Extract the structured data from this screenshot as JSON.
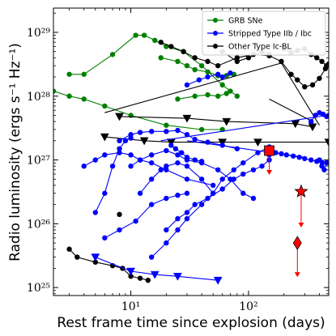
{
  "chart_data": {
    "type": "scatter",
    "title": "",
    "xlabel": "Rest frame time since explosion (days)",
    "ylabel": "Radio luminosity (ergs s⁻¹ Hz⁻¹)",
    "xscale": "log",
    "yscale": "log",
    "xlim": [
      2.2,
      480
    ],
    "ylim": [
      7.5e+24,
      2.4e+29
    ],
    "x_ticks": [
      {
        "value": 10,
        "label": "10¹"
      },
      {
        "value": 100,
        "label": "10²"
      }
    ],
    "y_ticks": [
      {
        "value": 1e+25,
        "label": "10²⁵"
      },
      {
        "value": 1e+26,
        "label": "10²⁶"
      },
      {
        "value": 1e+27,
        "label": "10²⁷"
      },
      {
        "value": 1e+28,
        "label": "10²⁸"
      },
      {
        "value": 1e+29,
        "label": "10²⁹"
      }
    ],
    "grid": false,
    "legend_position": "top-right",
    "legend": [
      {
        "label": "GRB SNe",
        "color": "#008000"
      },
      {
        "label": "Stripped Type IIb / Ibc",
        "color": "#0000ff"
      },
      {
        "label": "Other Type Ic-BL",
        "color": "#000000"
      }
    ],
    "series": [
      {
        "group": "GRB SNe",
        "color": "#008000",
        "marker": "circle",
        "points": [
          [
            3,
            2.2e+28
          ],
          [
            4,
            2.2e+28
          ],
          [
            7,
            4.5e+28
          ],
          [
            11,
            9e+28
          ],
          [
            13,
            9e+28
          ],
          [
            16,
            7.5e+28
          ],
          [
            20,
            6e+28
          ],
          [
            28,
            5e+28
          ],
          [
            40,
            3e+28
          ],
          [
            60,
            1.5e+28
          ],
          [
            80,
            1e+28
          ]
        ]
      },
      {
        "group": "GRB SNe",
        "color": "#008000",
        "marker": "circle",
        "points": [
          [
            2.2,
            1.2e+28
          ],
          [
            3,
            1e+28
          ],
          [
            4,
            9e+27
          ],
          [
            6,
            7e+27
          ],
          [
            10,
            5e+27
          ],
          [
            20,
            3.5e+27
          ],
          [
            40,
            3e+27
          ],
          [
            60,
            3e+27
          ]
        ]
      },
      {
        "group": "GRB SNe",
        "color": "#008000",
        "marker": "circle",
        "points": [
          [
            18,
            4e+28
          ],
          [
            25,
            3.5e+28
          ],
          [
            30,
            3e+28
          ],
          [
            35,
            2.6e+28
          ],
          [
            45,
            2.4e+28
          ],
          [
            55,
            2.1e+28
          ],
          [
            65,
            2.1e+28
          ],
          [
            75,
            2.2e+28
          ]
        ]
      },
      {
        "group": "GRB SNe",
        "color": "#008000",
        "marker": "circle",
        "points": [
          [
            25,
            9e+27
          ],
          [
            35,
            1e+28
          ],
          [
            45,
            1.05e+28
          ],
          [
            55,
            1e+28
          ],
          [
            65,
            1.1e+28
          ],
          [
            70,
            1.2e+28
          ]
        ]
      },
      {
        "group": "Other Type Ic-BL",
        "color": "#000000",
        "marker": "circle",
        "points": [
          [
            18,
            7e+28
          ],
          [
            22,
            6e+28
          ],
          [
            28,
            5e+28
          ],
          [
            35,
            4e+28
          ],
          [
            45,
            3.5e+28
          ],
          [
            55,
            3e+28
          ],
          [
            80,
            4e+28
          ],
          [
            110,
            4.5e+28
          ],
          [
            150,
            4.3e+28
          ],
          [
            190,
            3.5e+28
          ],
          [
            230,
            2.2e+28
          ],
          [
            260,
            1.8e+28
          ],
          [
            300,
            1.4e+28
          ],
          [
            350,
            1.5e+28
          ],
          [
            400,
            1.9e+28
          ],
          [
            450,
            2.7e+28
          ],
          [
            480,
            3.2e+28
          ]
        ]
      },
      {
        "group": "Other Type Ic-BL",
        "color": "#000000",
        "marker": "circle",
        "points": [
          [
            60,
            5e+28
          ],
          [
            80,
            3.5e+28
          ],
          [
            100,
            4e+28
          ],
          [
            130,
            5e+28
          ],
          [
            150,
            4.5e+28
          ]
        ]
      },
      {
        "group": "Other Type Ic-BL",
        "color": "#000000",
        "marker": "circle",
        "points": [
          [
            200,
            5.5e+28
          ],
          [
            230,
            4.8e+28
          ],
          [
            260,
            5.2e+28
          ],
          [
            300,
            5.5e+28
          ],
          [
            340,
            4.5e+28
          ],
          [
            380,
            4e+28
          ],
          [
            420,
            3.5e+28
          ],
          [
            460,
            3e+28
          ]
        ]
      },
      {
        "group": "Other Type Ic-BL",
        "color": "#000000",
        "marker": "circle",
        "points": [
          [
            3,
            4e+25
          ],
          [
            3.5,
            3e+25
          ],
          [
            5,
            2.5e+25
          ],
          [
            7,
            2.2e+25
          ],
          [
            8.5,
            2e+25
          ],
          [
            10,
            1.5e+25
          ],
          [
            12,
            1.4e+25
          ],
          [
            14,
            1.3e+25
          ]
        ]
      },
      {
        "group": "Other Type Ic-BL",
        "color": "#000000",
        "marker": "circle",
        "points": [
          [
            8,
            1.4e+26
          ]
        ]
      },
      {
        "group": "Other Type Ic-BL",
        "color": "#000000",
        "marker": "line",
        "points": [
          [
            6,
            5.5e+27
          ],
          [
            190,
            3.3e+28
          ],
          [
            400,
            3.5e+27
          ]
        ]
      },
      {
        "group": "Other Type Ic-BL",
        "color": "#000000",
        "marker": "line",
        "points": [
          [
            150,
            9e+27
          ],
          [
            350,
            4e+27
          ]
        ]
      },
      {
        "group": "Other Type Ic-BL",
        "color": "#000000",
        "marker": "triangle-down",
        "points": [
          [
            8,
            4.8e+27
          ],
          [
            30,
            4.5e+27
          ],
          [
            65,
            4e+27
          ],
          [
            250,
            3.7e+27
          ],
          [
            350,
            3.3e+27
          ]
        ]
      },
      {
        "group": "Other Type Ic-BL",
        "color": "#000000",
        "marker": "triangle-down",
        "points": [
          [
            6,
            2.3e+27
          ],
          [
            13,
            2e+27
          ],
          [
            22,
            1.9e+27
          ],
          [
            60,
            1.9e+27
          ],
          [
            120,
            1.9e+27
          ],
          [
            480,
            1.9e+27
          ]
        ]
      },
      {
        "group": "Stripped Type IIb / Ibc",
        "color": "#0000ff",
        "marker": "circle",
        "points": [
          [
            30,
            1.5e+28
          ],
          [
            38,
            1.8e+28
          ],
          [
            45,
            2e+28
          ],
          [
            55,
            2.2e+28
          ],
          [
            60,
            2e+28
          ],
          [
            70,
            2.3e+28
          ]
        ]
      },
      {
        "group": "Stripped Type IIb / Ibc",
        "color": "#0000ff",
        "marker": "circle",
        "points": [
          [
            8,
            2e+27
          ],
          [
            10,
            2.5e+27
          ],
          [
            12,
            2.7e+27
          ],
          [
            15,
            2.8e+27
          ],
          [
            20,
            2.8e+27
          ],
          [
            25,
            2.9e+27
          ],
          [
            30,
            2.5e+27
          ],
          [
            35,
            2.1e+27
          ],
          [
            45,
            1.9e+27
          ],
          [
            60,
            1.7e+27
          ],
          [
            80,
            1.5e+27
          ]
        ]
      },
      {
        "group": "Stripped Type IIb / Ibc",
        "color": "#0000ff",
        "marker": "circle",
        "points": [
          [
            5,
            1.5e+26
          ],
          [
            6,
            3e+26
          ],
          [
            7,
            8e+26
          ],
          [
            8,
            1.5e+27
          ],
          [
            9,
            2e+27
          ],
          [
            10,
            2.2e+27
          ]
        ]
      },
      {
        "group": "Stripped Type IIb / Ibc",
        "color": "#0000ff",
        "marker": "circle",
        "points": [
          [
            10,
            8e+26
          ],
          [
            12,
            1e+27
          ],
          [
            15,
            1.2e+27
          ],
          [
            20,
            1.4e+27
          ],
          [
            25,
            1.2e+27
          ],
          [
            30,
            1e+27
          ],
          [
            40,
            9e+26
          ],
          [
            55,
            7e+26
          ],
          [
            70,
            5e+26
          ],
          [
            90,
            3e+26
          ],
          [
            110,
            2.5e+26
          ]
        ]
      },
      {
        "group": "Stripped Type IIb / Ibc",
        "color": "#0000ff",
        "marker": "circle",
        "points": [
          [
            12,
            3e+26
          ],
          [
            15,
            5e+26
          ],
          [
            18,
            7e+26
          ],
          [
            20,
            8e+26
          ],
          [
            25,
            9e+26
          ],
          [
            30,
            8e+26
          ],
          [
            40,
            5e+26
          ],
          [
            50,
            3e+26
          ]
        ]
      },
      {
        "group": "Stripped Type IIb / Ibc",
        "color": "#0000ff",
        "marker": "circle",
        "points": [
          [
            4,
            8e+26
          ],
          [
            5,
            1e+27
          ],
          [
            6,
            1.2e+27
          ],
          [
            8,
            1.3e+27
          ],
          [
            10,
            1.2e+27
          ],
          [
            12,
            1e+27
          ],
          [
            15,
            9e+26
          ],
          [
            20,
            7e+26
          ],
          [
            30,
            5e+26
          ],
          [
            50,
            4e+26
          ]
        ]
      },
      {
        "group": "Stripped Type IIb / Ibc",
        "color": "#0000ff",
        "marker": "circle",
        "points": [
          [
            6,
            6e+25
          ],
          [
            8,
            8e+25
          ],
          [
            11,
            1.1e+26
          ],
          [
            15,
            2e+26
          ],
          [
            20,
            2.5e+26
          ],
          [
            25,
            2.8e+26
          ],
          [
            30,
            3e+26
          ]
        ]
      },
      {
        "group": "Stripped Type IIb / Ibc",
        "color": "#0000ff",
        "marker": "circle",
        "points": [
          [
            20,
            8e+25
          ],
          [
            25,
            1.2e+26
          ],
          [
            30,
            1.5e+26
          ],
          [
            35,
            2e+26
          ],
          [
            45,
            2.5e+26
          ],
          [
            60,
            3.5e+26
          ],
          [
            75,
            5e+26
          ],
          [
            90,
            6e+26
          ],
          [
            110,
            7e+26
          ],
          [
            130,
            8e+26
          ],
          [
            150,
            1e+27
          ]
        ]
      },
      {
        "group": "Stripped Type IIb / Ibc",
        "color": "#0000ff",
        "marker": "circle",
        "points": [
          [
            15,
            3e+25
          ],
          [
            20,
            5e+25
          ],
          [
            25,
            8e+25
          ],
          [
            30,
            1.2e+26
          ],
          [
            40,
            2e+26
          ],
          [
            50,
            3e+26
          ],
          [
            60,
            5e+26
          ],
          [
            75,
            7e+26
          ],
          [
            90,
            9e+26
          ],
          [
            120,
            1.3e+27
          ],
          [
            150,
            1.6e+27
          ]
        ]
      },
      {
        "group": "Stripped Type IIb / Ibc",
        "color": "#0000ff",
        "marker": "circle",
        "points": [
          [
            150,
            1.2e+27
          ],
          [
            170,
            1.3e+27
          ],
          [
            190,
            1.25e+27
          ],
          [
            210,
            1.2e+27
          ],
          [
            240,
            1.15e+27
          ],
          [
            270,
            1.1e+27
          ],
          [
            300,
            1.05e+27
          ],
          [
            340,
            1e+27
          ],
          [
            380,
            9.5e+26
          ],
          [
            420,
            9.2e+26
          ],
          [
            460,
            9e+26
          ]
        ]
      },
      {
        "group": "Stripped Type IIb / Ibc",
        "color": "#0000ff",
        "marker": "circle",
        "points": [
          [
            340,
            4e+27
          ],
          [
            370,
            5e+27
          ],
          [
            400,
            5.5e+27
          ],
          [
            430,
            5.2e+27
          ],
          [
            460,
            4.8e+27
          ],
          [
            480,
            5e+27
          ]
        ]
      },
      {
        "group": "Stripped Type IIb / Ibc",
        "color": "#0000ff",
        "marker": "circle",
        "points": [
          [
            400,
            1e+27
          ],
          [
            420,
            8e+26
          ],
          [
            440,
            7e+26
          ],
          [
            460,
            9e+26
          ]
        ]
      },
      {
        "group": "Stripped Type IIb / Ibc",
        "color": "#0000ff",
        "marker": "circle",
        "points": [
          [
            22,
            1.7e+27
          ],
          [
            24,
            1.5e+27
          ],
          [
            27,
            1.3e+27
          ],
          [
            30,
            1.1e+27
          ],
          [
            35,
            1e+27
          ],
          [
            40,
            9.5e+26
          ]
        ]
      },
      {
        "group": "Stripped Type IIb / Ibc",
        "color": "#0000ff",
        "marker": "line",
        "points": [
          [
            18,
            2e+27
          ],
          [
            460,
            5e+27
          ]
        ]
      },
      {
        "group": "Stripped Type IIb / Ibc",
        "color": "#0000ff",
        "marker": "line",
        "points": [
          [
            30,
            2e+27
          ],
          [
            300,
            1.1e+27
          ]
        ]
      },
      {
        "group": "Stripped Type IIb / Ibc",
        "color": "#0000ff",
        "marker": "triangle-down",
        "points": [
          [
            5,
            3e+25
          ],
          [
            10,
            1.8e+25
          ],
          [
            16,
            1.6e+25
          ],
          [
            25,
            1.5e+25
          ],
          [
            55,
            1.3e+25
          ]
        ]
      }
    ],
    "highlighted": [
      {
        "marker": "square",
        "color": "#ff0000",
        "x": 150,
        "y": 1.4e+27,
        "arrow_to": 6e+26
      },
      {
        "marker": "star",
        "color": "#ff0000",
        "x": 280,
        "y": 3.2e+26,
        "arrow_to": 9e+25
      },
      {
        "marker": "diamond",
        "color": "#ff0000",
        "x": 260,
        "y": 5e+25,
        "arrow_to": 1.5e+25
      }
    ]
  }
}
